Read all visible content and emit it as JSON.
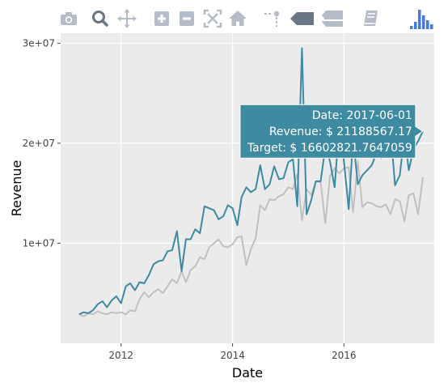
{
  "modebar": {
    "buttons": [
      {
        "id": "download-plot",
        "icon": "camera-icon"
      },
      {
        "id": "zoom",
        "icon": "magnifier-icon",
        "active": true
      },
      {
        "id": "pan",
        "icon": "move-arrows-icon"
      },
      {
        "id": "zoom-in",
        "icon": "plus-square-icon"
      },
      {
        "id": "zoom-out",
        "icon": "minus-square-icon"
      },
      {
        "id": "autoscale",
        "icon": "autoscale-icon"
      },
      {
        "id": "reset-axes",
        "icon": "home-icon"
      },
      {
        "id": "toggle-spike-lines",
        "icon": "spike-lines-icon"
      },
      {
        "id": "hover-closest",
        "icon": "hover-closest-icon"
      },
      {
        "id": "hover-compare",
        "icon": "hover-compare-icon"
      },
      {
        "id": "edit-chart",
        "icon": "book-icon"
      },
      {
        "id": "plotly-logo",
        "icon": "plotly-bars-icon"
      }
    ],
    "icon_color": "#b4bcc8",
    "logo_color": "#447adb"
  },
  "chart_data": {
    "type": "line",
    "xlabel": "Date",
    "ylabel": "Revenue",
    "xlim": [
      "2010-12-01",
      "2017-08-15"
    ],
    "ylim": [
      0,
      31000000
    ],
    "x_ticks": [
      {
        "value": "2012-01-01",
        "label": "2012"
      },
      {
        "value": "2014-01-01",
        "label": "2014"
      },
      {
        "value": "2016-01-01",
        "label": "2016"
      }
    ],
    "y_ticks": [
      {
        "value": 10000000,
        "label": "1e+07"
      },
      {
        "value": 20000000,
        "label": "2e+07"
      },
      {
        "value": 30000000,
        "label": "3e+07"
      }
    ],
    "grid": true,
    "plot_background": "#ebebeb",
    "grid_color": "#ffffff",
    "x": [
      "2011-04-01",
      "2011-05-01",
      "2011-06-01",
      "2011-07-01",
      "2011-08-01",
      "2011-09-01",
      "2011-10-01",
      "2011-11-01",
      "2011-12-01",
      "2012-01-01",
      "2012-02-01",
      "2012-03-01",
      "2012-04-01",
      "2012-05-01",
      "2012-06-01",
      "2012-07-01",
      "2012-08-01",
      "2012-09-01",
      "2012-10-01",
      "2012-11-01",
      "2012-12-01",
      "2013-01-01",
      "2013-02-01",
      "2013-03-01",
      "2013-04-01",
      "2013-05-01",
      "2013-06-01",
      "2013-07-01",
      "2013-08-01",
      "2013-09-01",
      "2013-10-01",
      "2013-11-01",
      "2013-12-01",
      "2014-01-01",
      "2014-02-01",
      "2014-03-01",
      "2014-04-01",
      "2014-05-01",
      "2014-06-01",
      "2014-07-01",
      "2014-08-01",
      "2014-09-01",
      "2014-10-01",
      "2014-11-01",
      "2014-12-01",
      "2015-01-01",
      "2015-02-01",
      "2015-03-01",
      "2015-04-01",
      "2015-05-01",
      "2015-06-01",
      "2015-07-01",
      "2015-08-01",
      "2015-09-01",
      "2015-10-01",
      "2015-11-01",
      "2015-12-01",
      "2016-01-01",
      "2016-02-01",
      "2016-03-01",
      "2016-04-01",
      "2016-05-01",
      "2016-06-01",
      "2016-07-01",
      "2016-08-01",
      "2016-09-01",
      "2016-10-01",
      "2016-11-01",
      "2016-12-01",
      "2017-01-01",
      "2017-02-01",
      "2017-03-01",
      "2017-04-01",
      "2017-05-01",
      "2017-06-01"
    ],
    "series": [
      {
        "color": "#3d8aa1",
        "values": [
          2900000,
          3100000,
          3000000,
          3300000,
          3900000,
          4200000,
          3600000,
          4300000,
          4700000,
          4000000,
          5700000,
          6000000,
          5300000,
          6100000,
          6000000,
          6800000,
          7900000,
          8200000,
          8300000,
          9200000,
          9300000,
          11200000,
          7200000,
          10400000,
          10400000,
          11400000,
          11000000,
          13700000,
          13500000,
          13300000,
          12400000,
          12700000,
          13800000,
          13500000,
          11800000,
          14600000,
          15600000,
          15100000,
          15400000,
          17800000,
          15400000,
          15900000,
          17700000,
          16400000,
          16500000,
          18100000,
          18400000,
          13700000,
          29500000,
          12900000,
          14300000,
          16200000,
          16200000,
          19600000,
          18200000,
          15600000,
          21800000,
          18200000,
          13400000,
          20500000,
          15900000,
          16800000,
          17300000,
          17800000,
          19000000,
          18500000,
          20500000,
          21400000,
          15800000,
          16800000,
          20900000,
          17300000,
          19400000,
          20200000,
          21188567.17
        ]
      },
      {
        "color": "#c0c0c0",
        "values": [
          2900000,
          2700000,
          3000000,
          2900000,
          3200000,
          3000000,
          2900000,
          3100000,
          3000000,
          3100000,
          2900000,
          3300000,
          3200000,
          4400000,
          5100000,
          4600000,
          5100000,
          5400000,
          5000000,
          5700000,
          6400000,
          6000000,
          7200000,
          6100000,
          7300000,
          7700000,
          8600000,
          8400000,
          9600000,
          10000000,
          10400000,
          9700000,
          9600000,
          9900000,
          10600000,
          10700000,
          7800000,
          9400000,
          10500000,
          13800000,
          13300000,
          14400000,
          14300000,
          14700000,
          14900000,
          15600000,
          15400000,
          16900000,
          12300000,
          15400000,
          14800000,
          16200000,
          16100000,
          12000000,
          16700000,
          17500000,
          17000000,
          17500000,
          17600000,
          13100000,
          18200000,
          13600000,
          14100000,
          14000000,
          13700000,
          13600000,
          13900000,
          12900000,
          14400000,
          14200000,
          12200000,
          14800000,
          15000000,
          12900000,
          16602821.7647059
        ]
      }
    ],
    "hover": {
      "color": "#3d8aa1",
      "lines": [
        "Date: 2017-06-01",
        "Revenue: $ 21188567.17",
        "Target: $ 16602821.7647059"
      ]
    }
  }
}
